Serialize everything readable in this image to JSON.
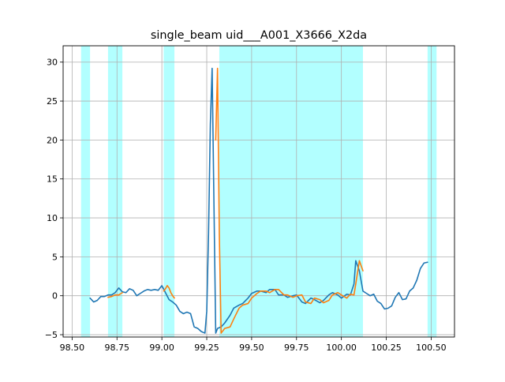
{
  "chart_data": {
    "type": "line",
    "title": "single_beam uid___A001_X3666_X2da",
    "xlabel": "",
    "ylabel": "",
    "xlim": [
      98.45,
      100.63
    ],
    "ylim": [
      -5.3,
      32.1
    ],
    "grid": true,
    "x_ticks": [
      98.5,
      98.75,
      99.0,
      99.25,
      99.5,
      99.75,
      100.0,
      100.25,
      100.5
    ],
    "x_tick_labels": [
      "98.50",
      "98.75",
      "99.00",
      "99.25",
      "99.50",
      "99.75",
      "100.00",
      "100.25",
      "100.50"
    ],
    "y_ticks": [
      -5,
      0,
      5,
      10,
      15,
      20,
      25,
      30
    ],
    "y_tick_labels": [
      "−5",
      "0",
      "5",
      "10",
      "15",
      "20",
      "25",
      "30"
    ],
    "shaded_spans": [
      [
        98.55,
        98.6
      ],
      [
        98.7,
        98.78
      ],
      [
        99.01,
        99.07
      ],
      [
        99.32,
        100.12
      ],
      [
        100.48,
        100.53
      ]
    ],
    "colors": {
      "shade": "#b2ffff",
      "series_main": "#1f77b4",
      "series_highlight": "#ff7f0e",
      "grid": "#b0b0b0"
    },
    "series": [
      {
        "x": [
          98.6,
          98.62,
          98.64,
          98.66,
          98.68,
          98.7,
          98.72,
          98.74,
          98.76,
          98.78,
          98.8,
          98.82,
          98.84,
          98.86,
          98.88,
          98.9,
          98.92,
          98.94,
          98.96,
          98.98,
          99.0,
          99.02,
          99.04,
          99.06,
          99.08,
          99.1,
          99.12,
          99.14,
          99.16,
          99.18,
          99.2,
          99.22,
          99.24,
          99.25,
          99.26,
          99.27,
          99.28,
          99.29,
          99.3,
          99.31,
          99.32,
          99.33,
          99.35,
          99.38,
          99.4,
          99.43,
          99.45,
          99.48,
          99.5,
          99.53,
          99.55,
          99.58,
          99.6,
          99.63,
          99.65,
          99.68,
          99.7,
          99.73,
          99.75,
          99.78,
          99.8,
          99.83,
          99.85,
          99.88,
          99.9,
          99.93,
          99.95,
          99.98,
          100.0,
          100.03,
          100.05,
          100.07,
          100.08,
          100.1,
          100.12,
          100.14,
          100.16,
          100.18,
          100.2,
          100.22,
          100.24,
          100.26,
          100.28,
          100.3,
          100.32,
          100.34,
          100.36,
          100.38,
          100.4,
          100.42,
          100.44,
          100.46,
          100.48
        ],
        "y": [
          -0.3,
          -0.8,
          -0.6,
          -0.1,
          -0.1,
          0.1,
          0.1,
          0.4,
          1.0,
          0.5,
          0.4,
          0.9,
          0.7,
          0.0,
          0.3,
          0.6,
          0.8,
          0.7,
          0.8,
          0.7,
          1.3,
          0.4,
          -0.5,
          -0.8,
          -1.2,
          -2.0,
          -2.3,
          -2.1,
          -2.3,
          -4.0,
          -4.2,
          -4.6,
          -4.8,
          -2.0,
          8.0,
          22.0,
          29.2,
          12.0,
          -4.8,
          -4.2,
          -4.1,
          -4.0,
          -3.5,
          -2.5,
          -1.6,
          -1.2,
          -1.0,
          -0.3,
          0.3,
          0.6,
          0.6,
          0.4,
          0.8,
          0.8,
          0.1,
          0.1,
          -0.2,
          0.0,
          0.1,
          -0.8,
          -1.0,
          -0.3,
          -0.5,
          -0.9,
          -0.6,
          0.1,
          0.4,
          0.1,
          -0.3,
          0.2,
          0.1,
          1.5,
          4.5,
          3.2,
          0.6,
          0.3,
          0.0,
          0.2,
          -0.7,
          -1.0,
          -1.7,
          -1.6,
          -1.3,
          -0.2,
          0.4,
          -0.5,
          -0.4,
          0.6,
          1.0,
          2.0,
          3.5,
          4.2,
          4.3
        ]
      },
      {
        "x": [
          98.7,
          98.72,
          98.74,
          98.76,
          98.78
        ],
        "y": [
          -0.2,
          -0.1,
          0.1,
          0.1,
          0.4
        ]
      },
      {
        "x": [
          99.01,
          99.02,
          99.03,
          99.04,
          99.05,
          99.06,
          99.07
        ],
        "y": [
          0.6,
          0.9,
          1.3,
          1.0,
          0.4,
          0.0,
          -0.3
        ]
      },
      {
        "x": [
          99.3,
          99.31,
          99.32,
          99.33,
          99.35,
          99.38,
          99.4,
          99.43,
          99.45,
          99.48,
          99.5,
          99.53,
          99.55,
          99.58,
          99.6,
          99.63,
          99.65,
          99.68,
          99.7,
          99.73,
          99.75,
          99.78,
          99.8,
          99.83,
          99.85,
          99.88,
          99.9,
          99.93,
          99.95,
          99.98,
          100.0,
          100.03,
          100.05,
          100.07,
          100.08,
          100.1,
          100.12
        ],
        "y": [
          20.0,
          29.2,
          8.0,
          -4.8,
          -4.2,
          -4.0,
          -3.0,
          -1.6,
          -1.2,
          -1.0,
          -0.3,
          0.3,
          0.6,
          0.6,
          0.4,
          0.8,
          0.8,
          0.1,
          0.1,
          -0.2,
          0.0,
          0.1,
          -0.8,
          -1.0,
          -0.3,
          -0.5,
          -0.9,
          -0.6,
          0.1,
          0.4,
          0.1,
          -0.3,
          0.2,
          0.1,
          1.5,
          4.5,
          3.2
        ]
      }
    ]
  }
}
